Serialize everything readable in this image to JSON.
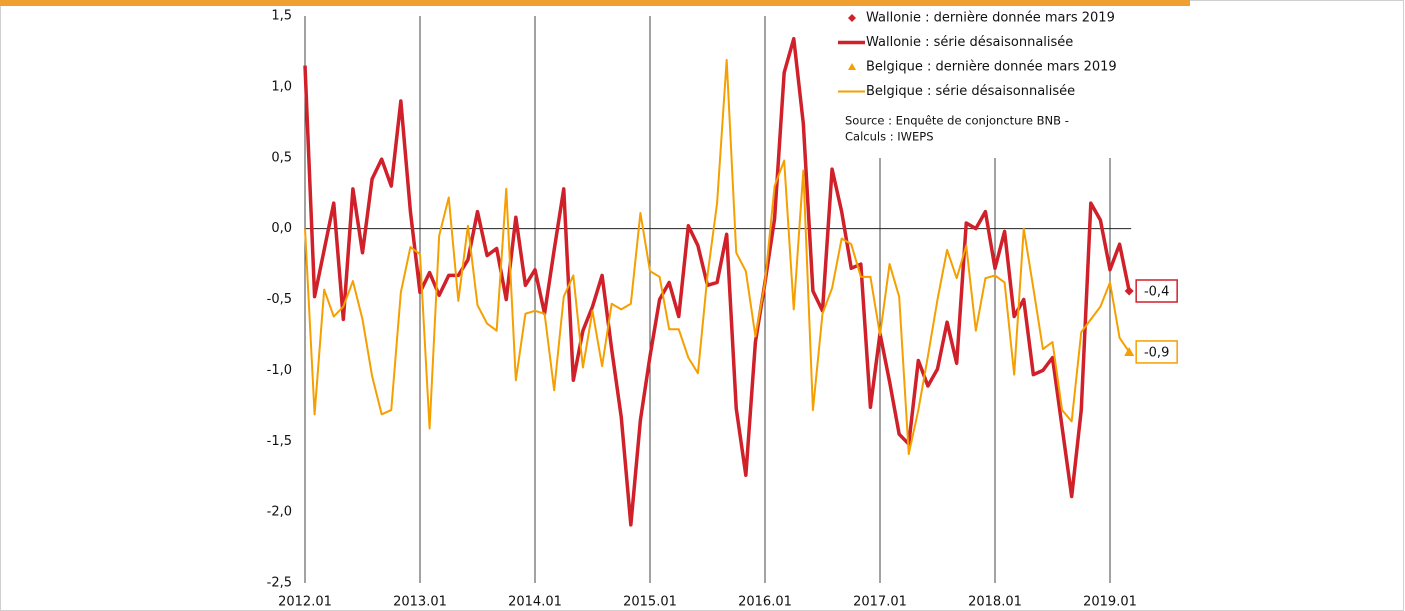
{
  "chart_data": {
    "type": "line",
    "x": [
      "2012.01",
      "2012.02",
      "2012.03",
      "2012.04",
      "2012.05",
      "2012.06",
      "2012.07",
      "2012.08",
      "2012.09",
      "2012.10",
      "2012.11",
      "2012.12",
      "2013.01",
      "2013.02",
      "2013.03",
      "2013.04",
      "2013.05",
      "2013.06",
      "2013.07",
      "2013.08",
      "2013.09",
      "2013.10",
      "2013.11",
      "2013.12",
      "2014.01",
      "2014.02",
      "2014.03",
      "2014.04",
      "2014.05",
      "2014.06",
      "2014.07",
      "2014.08",
      "2014.09",
      "2014.10",
      "2014.11",
      "2014.12",
      "2015.01",
      "2015.02",
      "2015.03",
      "2015.04",
      "2015.05",
      "2015.06",
      "2015.07",
      "2015.08",
      "2015.09",
      "2015.10",
      "2015.11",
      "2015.12",
      "2016.01",
      "2016.02",
      "2016.03",
      "2016.04",
      "2016.05",
      "2016.06",
      "2016.07",
      "2016.08",
      "2016.09",
      "2016.10",
      "2016.11",
      "2016.12",
      "2017.01",
      "2017.02",
      "2017.03",
      "2017.04",
      "2017.05",
      "2017.06",
      "2017.07",
      "2017.08",
      "2017.09",
      "2017.10",
      "2017.11",
      "2017.12",
      "2018.01",
      "2018.02",
      "2018.03",
      "2018.04",
      "2018.05",
      "2018.06",
      "2018.07",
      "2018.08",
      "2018.09",
      "2018.10",
      "2018.11",
      "2018.12",
      "2019.01",
      "2019.02",
      "2019.03"
    ],
    "xticks": [
      "2012.01",
      "2013.01",
      "2014.01",
      "2015.01",
      "2016.01",
      "2017.01",
      "2018.01",
      "2019.01"
    ],
    "ylim": [
      -2.5,
      1.5
    ],
    "yticks": [
      {
        "value": -2.5,
        "label": "-2,5"
      },
      {
        "value": -2.0,
        "label": "-2,0"
      },
      {
        "value": -1.5,
        "label": "-1,5"
      },
      {
        "value": -1.0,
        "label": "-1,0"
      },
      {
        "value": -0.5,
        "label": "-0,5"
      },
      {
        "value": 0,
        "label": "0,0"
      },
      {
        "value": 0.5,
        "label": "0,5"
      },
      {
        "value": 1.0,
        "label": "1,0"
      },
      {
        "value": 1.5,
        "label": "1,5"
      }
    ],
    "series": [
      {
        "name": "Wallonie : dernière donnée mars 2019",
        "color": "#d0202a",
        "marker": "diamond",
        "x": [
          "2019.03"
        ],
        "values": [
          -0.44
        ],
        "value_labels": [
          "-0,4"
        ]
      },
      {
        "name": "Wallonie : série désaisonnalisée",
        "color": "#d0202a",
        "values": [
          1.15,
          -0.48,
          -0.15,
          0.18,
          -0.64,
          0.28,
          -0.17,
          0.35,
          0.49,
          0.3,
          0.9,
          0.12,
          -0.45,
          -0.31,
          -0.47,
          -0.33,
          -0.33,
          -0.22,
          0.12,
          -0.19,
          -0.14,
          -0.5,
          0.08,
          -0.4,
          -0.29,
          -0.6,
          -0.15,
          0.28,
          -1.07,
          -0.72,
          -0.55,
          -0.33,
          -0.85,
          -1.33,
          -2.09,
          -1.35,
          -0.9,
          -0.5,
          -0.38,
          -0.62,
          0.02,
          -0.12,
          -0.4,
          -0.38,
          -0.04,
          -1.27,
          -1.74,
          -0.8,
          -0.38,
          0.07,
          1.1,
          1.34,
          0.74,
          -0.44,
          -0.58,
          0.42,
          0.12,
          -0.28,
          -0.25,
          -1.26,
          -0.74,
          -1.08,
          -1.45,
          -1.52,
          -0.93,
          -1.11,
          -0.99,
          -0.66,
          -0.95,
          0.04,
          0.0,
          0.12,
          -0.28,
          -0.02,
          -0.62,
          -0.5,
          -1.03,
          -1.0,
          -0.91,
          -1.4,
          -1.89,
          -1.28,
          0.18,
          0.06,
          -0.29,
          -0.11,
          -0.44
        ]
      },
      {
        "name": "Belgique : dernière donnée mars 2019",
        "color": "#f5a000",
        "marker": "triangle",
        "x": [
          "2019.03"
        ],
        "values": [
          -0.87
        ],
        "value_labels": [
          "-0,9"
        ]
      },
      {
        "name": "Belgique : série désaisonnalisée",
        "color": "#f5a000",
        "values": [
          0.0,
          -1.31,
          -0.43,
          -0.62,
          -0.55,
          -0.37,
          -0.64,
          -1.04,
          -1.31,
          -1.28,
          -0.45,
          -0.13,
          -0.18,
          -1.41,
          -0.05,
          0.22,
          -0.51,
          0.02,
          -0.54,
          -0.67,
          -0.72,
          0.28,
          -1.07,
          -0.6,
          -0.58,
          -0.6,
          -1.14,
          -0.48,
          -0.33,
          -0.98,
          -0.58,
          -0.97,
          -0.53,
          -0.57,
          -0.53,
          0.11,
          -0.3,
          -0.34,
          -0.71,
          -0.71,
          -0.91,
          -1.02,
          -0.33,
          0.18,
          1.19,
          -0.17,
          -0.3,
          -0.76,
          -0.38,
          0.3,
          0.48,
          -0.57,
          0.41,
          -1.28,
          -0.6,
          -0.42,
          -0.07,
          -0.11,
          -0.34,
          -0.34,
          -0.75,
          -0.25,
          -0.48,
          -1.59,
          -1.28,
          -0.9,
          -0.5,
          -0.15,
          -0.35,
          -0.12,
          -0.72,
          -0.35,
          -0.33,
          -0.38,
          -1.03,
          0.0,
          -0.42,
          -0.85,
          -0.8,
          -1.28,
          -1.36,
          -0.73,
          -0.64,
          -0.55,
          -0.38,
          -0.77,
          -0.87
        ]
      }
    ],
    "note": [
      "Source : Enquête de conjoncture BNB -",
      "Calculs : IWEPS"
    ]
  }
}
